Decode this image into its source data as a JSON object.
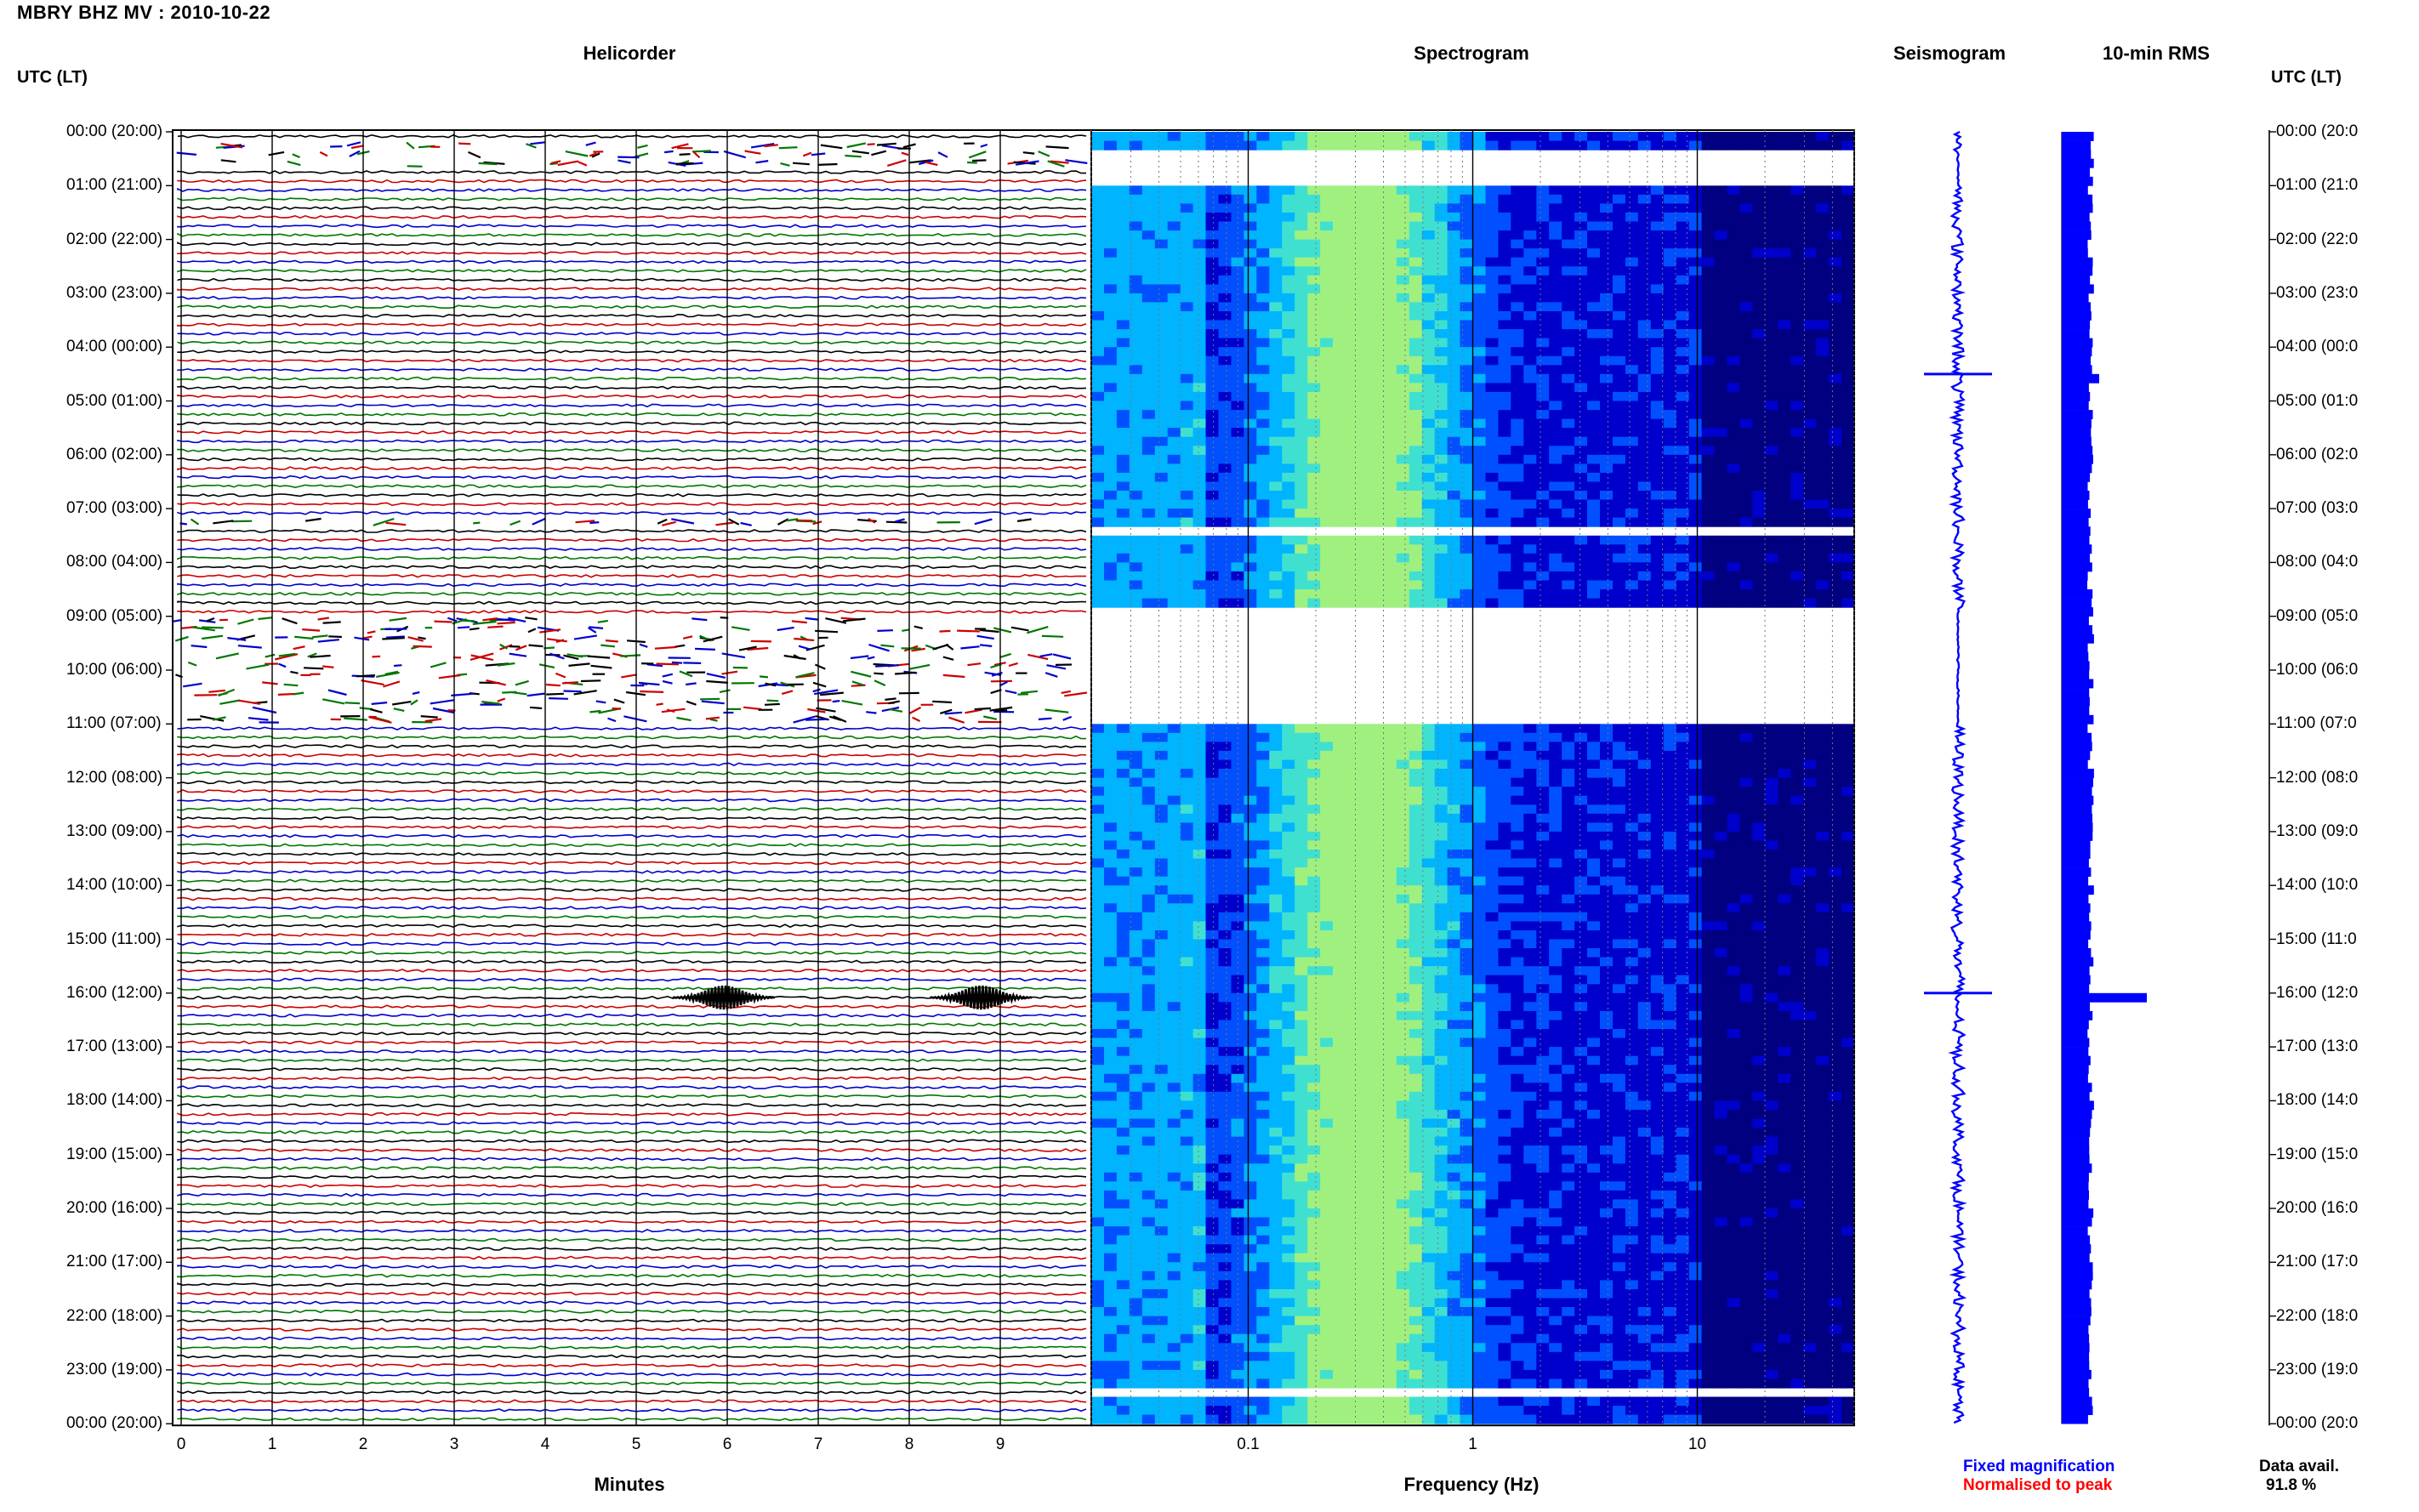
{
  "header": {
    "title": "MBRY BHZ MV : 2010-10-22"
  },
  "panels": {
    "helicorder": "Helicorder",
    "spectrogram": "Spectrogram",
    "seismogram": "Seismogram",
    "rms": "10-min RMS"
  },
  "time_axis": {
    "header": "UTC (LT)",
    "labels": [
      "00:00 (20:00)",
      "01:00 (21:00)",
      "02:00 (22:00)",
      "03:00 (23:00)",
      "04:00 (00:00)",
      "05:00 (01:00)",
      "06:00 (02:00)",
      "07:00 (03:00)",
      "08:00 (04:00)",
      "09:00 (05:00)",
      "10:00 (06:00)",
      "11:00 (07:00)",
      "12:00 (08:00)",
      "13:00 (09:00)",
      "14:00 (10:00)",
      "15:00 (11:00)",
      "16:00 (12:00)",
      "17:00 (13:00)",
      "18:00 (14:00)",
      "19:00 (15:00)",
      "20:00 (16:00)",
      "21:00 (17:00)",
      "22:00 (18:00)",
      "23:00 (19:00)",
      "00:00 (20:00)"
    ],
    "labels_right": [
      "00:00 (20:0",
      "01:00 (21:0",
      "02:00 (22:0",
      "03:00 (23:0",
      "04:00 (00:0",
      "05:00 (01:0",
      "06:00 (02:0",
      "07:00 (03:0",
      "08:00 (04:0",
      "09:00 (05:0",
      "10:00 (06:0",
      "11:00 (07:0",
      "12:00 (08:0",
      "13:00 (09:0",
      "14:00 (10:0",
      "15:00 (11:0",
      "16:00 (12:0",
      "17:00 (13:0",
      "18:00 (14:0",
      "19:00 (15:0",
      "20:00 (16:0",
      "21:00 (17:0",
      "22:00 (18:0",
      "23:00 (19:0",
      "00:00 (20:0"
    ]
  },
  "chart_data": [
    {
      "type": "line",
      "panel": "Helicorder",
      "xlabel": "Minutes",
      "x_ticks": [
        "0",
        "1",
        "2",
        "3",
        "4",
        "5",
        "6",
        "7",
        "8",
        "9"
      ],
      "xlim": [
        0,
        10
      ],
      "rows_per_hour": 6,
      "trace_colors": [
        "#000000",
        "#cc0000",
        "#0000cc",
        "#007700"
      ],
      "gaps": [
        {
          "from": "00:10",
          "to": "00:40",
          "state": "fragmented"
        },
        {
          "from": "07:10",
          "to": "07:20",
          "state": "fragmented"
        },
        {
          "from": "09:00",
          "to": "11:00",
          "state": "fragmented"
        }
      ],
      "events": [
        {
          "row": "16:00",
          "minute": 6.0,
          "label": ""
        },
        {
          "row": "16:00",
          "minute": 8.8,
          "label": ""
        }
      ]
    },
    {
      "type": "heatmap",
      "panel": "Spectrogram",
      "xlabel": "Frequency (Hz)",
      "x_scale": "log",
      "x_ticks": [
        "0.1",
        "1",
        "10"
      ],
      "xlim": [
        0.02,
        50
      ],
      "colormap": [
        "#000080",
        "#0000cc",
        "#0050ff",
        "#00b4ff",
        "#40e0d0",
        "#a0f080"
      ],
      "peak_energy_hz": 0.3,
      "gaps": [
        "00:20-01:00",
        "07:20-07:30",
        "08:50-11:00",
        "23:20-23:30"
      ]
    },
    {
      "type": "line",
      "panel": "Seismogram",
      "color": "#0000ff",
      "events": [
        {
          "time": "04:30"
        },
        {
          "time": "16:00"
        }
      ]
    },
    {
      "type": "bar",
      "panel": "10-min RMS",
      "color": "#0000ff",
      "orientation": "horizontal",
      "peaks": [
        {
          "time": "04:30"
        },
        {
          "time": "16:00"
        }
      ]
    }
  ],
  "legend": {
    "fixed": "Fixed magnification",
    "normalised": "Normalised to peak",
    "fixed_color": "#0000ff",
    "normalised_color": "#ff0000"
  },
  "availability": {
    "label": "Data avail.",
    "value": "91.8 %"
  }
}
